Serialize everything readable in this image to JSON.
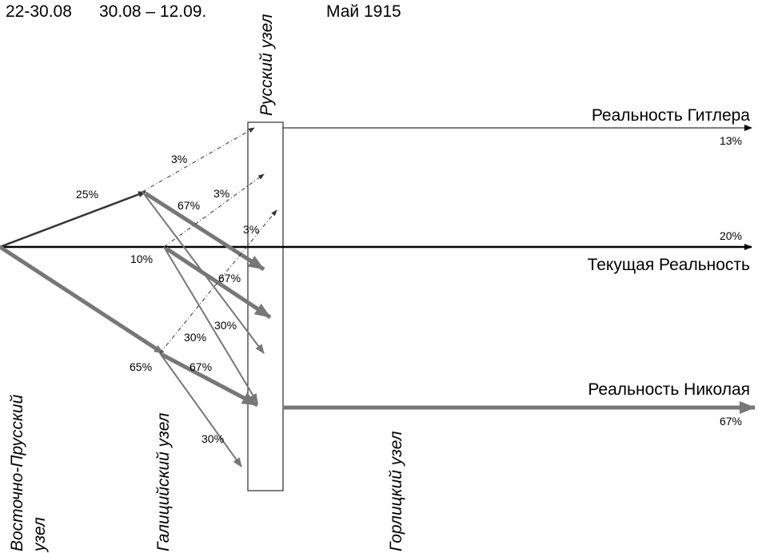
{
  "header": {
    "period_1": "22-30.08",
    "period_2": "30.08 – 12.09.",
    "period_3": "Май 1915"
  },
  "nodes": {
    "east_prussian_line1": "Восточно-Прусский",
    "east_prussian_line2": "узел",
    "galician": "Галицийский узел",
    "russian": "Русский узел",
    "gorlice": "Горлицкий узел"
  },
  "realities": {
    "hitler": {
      "label": "Реальность Гитлера",
      "value": "13%"
    },
    "current": {
      "label": "Текущая Реальность",
      "value": "20%"
    },
    "nikolai": {
      "label": "Реальность Николая",
      "value": "67%"
    }
  },
  "edge_labels": {
    "upper_branch": "25%",
    "middle_branch": "10%",
    "lower_branch": "65%",
    "upper_dotted": "3%",
    "upper_main": "67%",
    "middle_dotted": "3%",
    "upper_mid_dotted": "3%",
    "middle_main": "67%",
    "upper_down": "30%",
    "middle_down": "30%",
    "lower_main": "67%",
    "lower_down": "30%"
  },
  "colors": {
    "line_dark": "#333333",
    "line_gray": "#777777",
    "line_black": "#000000"
  }
}
